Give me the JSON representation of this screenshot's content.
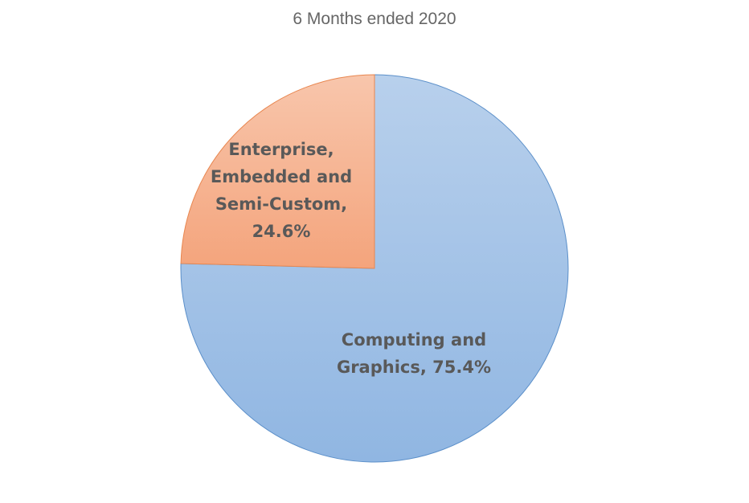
{
  "chart_data": {
    "type": "pie",
    "title": "6 Months ended 2020",
    "slices": [
      {
        "name": "Computing and Graphics",
        "value": 75.4,
        "label_lines": [
          "Computing and",
          "Graphics, 75.4%"
        ],
        "color_top": "#b8d0ec",
        "color_bottom": "#90b6e2",
        "stroke": "#5b8fc9"
      },
      {
        "name": "Enterprise, Embedded and Semi-Custom",
        "value": 24.6,
        "label_lines": [
          "Enterprise,",
          "Embedded and",
          "Semi-Custom,",
          "24.6%"
        ],
        "color_top": "#f8c6ac",
        "color_bottom": "#f4a47c",
        "stroke": "#e8864f"
      }
    ],
    "start_angle": "12 o'clock",
    "direction": "clockwise",
    "legend": "none"
  }
}
